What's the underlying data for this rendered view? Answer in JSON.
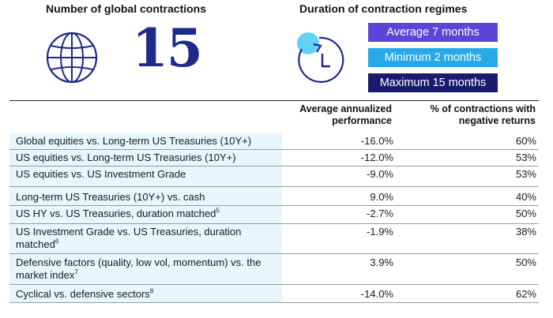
{
  "left_panel": {
    "heading": "Number of global contractions",
    "value": "15",
    "icon": "globe-icon",
    "accent_color": "#1e2a8a"
  },
  "right_panel": {
    "heading": "Duration of contraction regimes",
    "icon": "clock-icon",
    "pills": [
      {
        "label": "Average 7 months",
        "color": "#5a46d8"
      },
      {
        "label": "Minimum 2 months",
        "color": "#27a9e8"
      },
      {
        "label": "Maximum 15 months",
        "color": "#1c1a6e"
      }
    ]
  },
  "table": {
    "headers": [
      "",
      "Average annualized performance",
      "% of contractions with negative returns"
    ],
    "rows": [
      {
        "label": "Global equities vs. Long-term US Treasuries (10Y+)",
        "sup": "",
        "avg": "-16.0%",
        "neg": "60%"
      },
      {
        "label": "US equities vs. Long-term US Treasuries (10Y+)",
        "sup": "",
        "avg": "-12.0%",
        "neg": "53%"
      },
      {
        "label": "US equities vs. US Investment Grade",
        "sup": "",
        "avg": "-9.0%",
        "neg": "53%"
      },
      {
        "label": "Long-term US Treasuries (10Y+) vs. cash",
        "sup": "",
        "avg": "9.0%",
        "neg": "40%"
      },
      {
        "label": "US HY vs. US Treasuries, duration matched",
        "sup": "5",
        "avg": "-2.7%",
        "neg": "50%"
      },
      {
        "label": "US Investment Grade vs. US Treasuries, duration matched",
        "sup": "6",
        "avg": "-1.9%",
        "neg": "38%"
      },
      {
        "label": "Defensive factors (quality, low vol, momentum) vs. the market index",
        "sup": "7",
        "avg": "3.9%",
        "neg": "50%"
      },
      {
        "label": "Cyclical vs. defensive sectors",
        "sup": "8",
        "avg": "-14.0%",
        "neg": "62%"
      }
    ]
  }
}
